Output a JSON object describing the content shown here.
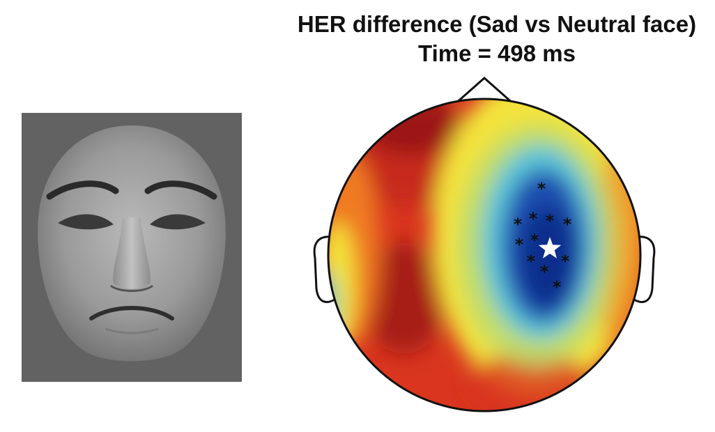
{
  "figure": {
    "title": "HER difference (Sad vs Neutral face)",
    "subtitle": "Time = 498 ms"
  },
  "face_stimulus": {
    "icon": "sad-face-photo",
    "background_color": "#626262"
  },
  "topomap": {
    "colors": {
      "dark_red": "#8e1414",
      "red": "#d9351f",
      "orange": "#ef7a22",
      "yellow": "#f3e33b",
      "light_green": "#b7dc6f",
      "cyan": "#58c3d8",
      "blue": "#1a4fb0",
      "dark_blue": "#0b2f8c"
    },
    "electrode_marker": "asterisk",
    "peak_marker": "white-star"
  }
}
